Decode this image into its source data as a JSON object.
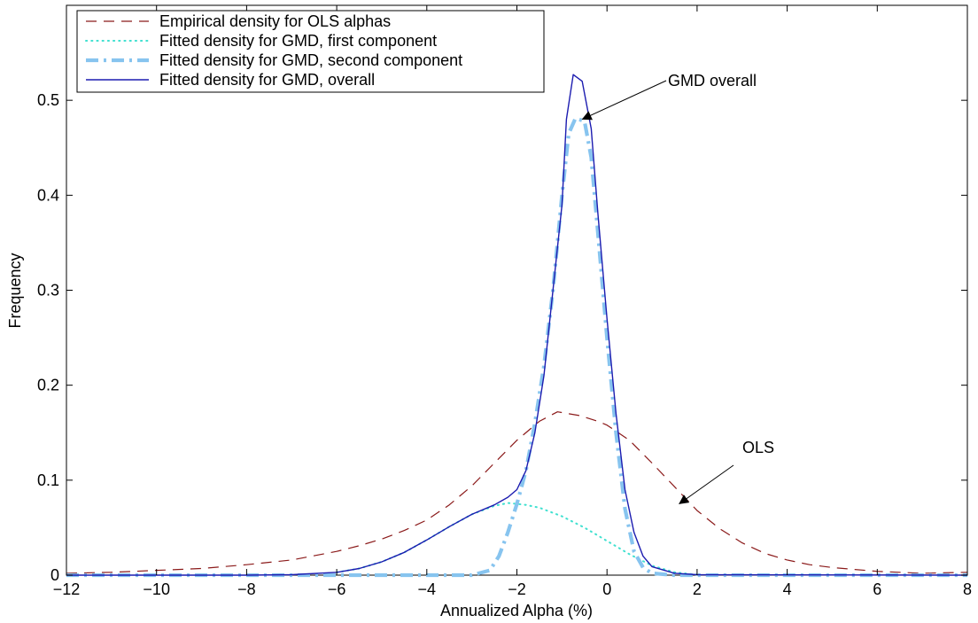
{
  "chart_data": {
    "type": "line",
    "title": "",
    "xlabel": "Annualized Alpha (%)",
    "ylabel": "Frequency",
    "xlim": [
      -12,
      8
    ],
    "ylim": [
      0,
      0.6
    ],
    "xticks": [
      -12,
      -10,
      -8,
      -6,
      -4,
      -2,
      0,
      2,
      4,
      6,
      8
    ],
    "xtick_labels": [
      "−12",
      "−10",
      "−8",
      "−6",
      "−4",
      "−2",
      "0",
      "2",
      "4",
      "6",
      "8"
    ],
    "yticks": [
      0,
      0.1,
      0.2,
      0.3,
      0.4,
      0.5
    ],
    "ytick_labels": [
      "0",
      "0.1",
      "0.2",
      "0.3",
      "0.4",
      "0.5"
    ],
    "grid": false,
    "legend_position": "top-left",
    "series": [
      {
        "name": "Empirical density for OLS alphas",
        "color": "#8b1a1a",
        "style": "dashed",
        "points": [
          [
            -12,
            0.002
          ],
          [
            -11,
            0.003
          ],
          [
            -10,
            0.005
          ],
          [
            -9,
            0.007
          ],
          [
            -8,
            0.011
          ],
          [
            -7,
            0.016
          ],
          [
            -6,
            0.025
          ],
          [
            -5.5,
            0.031
          ],
          [
            -5,
            0.038
          ],
          [
            -4.5,
            0.047
          ],
          [
            -4,
            0.058
          ],
          [
            -3.5,
            0.074
          ],
          [
            -3,
            0.094
          ],
          [
            -2.5,
            0.118
          ],
          [
            -2,
            0.142
          ],
          [
            -1.5,
            0.162
          ],
          [
            -1.1,
            0.172
          ],
          [
            -0.6,
            0.168
          ],
          [
            -0.2,
            0.162
          ],
          [
            0,
            0.158
          ],
          [
            0.5,
            0.142
          ],
          [
            1,
            0.118
          ],
          [
            1.5,
            0.093
          ],
          [
            2,
            0.068
          ],
          [
            2.5,
            0.049
          ],
          [
            3,
            0.034
          ],
          [
            3.5,
            0.023
          ],
          [
            4,
            0.016
          ],
          [
            4.5,
            0.011
          ],
          [
            5,
            0.008
          ],
          [
            5.5,
            0.006
          ],
          [
            6,
            0.004
          ],
          [
            6.5,
            0.003
          ],
          [
            7,
            0.002
          ],
          [
            8,
            0.003
          ]
        ]
      },
      {
        "name": "Fitted density for GMD, first component",
        "color": "#40e0d0",
        "style": "dotted",
        "points": [
          [
            -6,
            0.003
          ],
          [
            -5.5,
            0.007
          ],
          [
            -5,
            0.014
          ],
          [
            -4.5,
            0.024
          ],
          [
            -4,
            0.037
          ],
          [
            -3.5,
            0.051
          ],
          [
            -3,
            0.064
          ],
          [
            -2.5,
            0.073
          ],
          [
            -2.2,
            0.076
          ],
          [
            -1.8,
            0.074
          ],
          [
            -1.5,
            0.071
          ],
          [
            -1,
            0.062
          ],
          [
            -0.5,
            0.05
          ],
          [
            0,
            0.036
          ],
          [
            0.5,
            0.022
          ],
          [
            1,
            0.01
          ],
          [
            1.5,
            0.003
          ],
          [
            2,
            0.0005
          ]
        ]
      },
      {
        "name": "Fitted density for GMD, second component",
        "color": "#87c4ef",
        "style": "dashdot",
        "points": [
          [
            -12,
            0
          ],
          [
            -6,
            0
          ],
          [
            -3,
            0
          ],
          [
            -2.6,
            0.005
          ],
          [
            -2.4,
            0.02
          ],
          [
            -2.2,
            0.045
          ],
          [
            -2.0,
            0.075
          ],
          [
            -1.8,
            0.11
          ],
          [
            -1.6,
            0.16
          ],
          [
            -1.4,
            0.22
          ],
          [
            -1.2,
            0.3
          ],
          [
            -1.0,
            0.4
          ],
          [
            -0.85,
            0.465
          ],
          [
            -0.7,
            0.481
          ],
          [
            -0.5,
            0.478
          ],
          [
            -0.35,
            0.44
          ],
          [
            -0.2,
            0.36
          ],
          [
            0,
            0.25
          ],
          [
            0.2,
            0.15
          ],
          [
            0.4,
            0.07
          ],
          [
            0.6,
            0.025
          ],
          [
            0.8,
            0.008
          ],
          [
            1.0,
            0.002
          ],
          [
            1.5,
            0
          ],
          [
            8,
            0
          ]
        ]
      },
      {
        "name": "Fitted density for GMD, overall",
        "color": "#1c1cb0",
        "style": "solid",
        "points": [
          [
            -12,
            0
          ],
          [
            -8,
            0
          ],
          [
            -7,
            0.0005
          ],
          [
            -6,
            0.003
          ],
          [
            -5.5,
            0.007
          ],
          [
            -5,
            0.014
          ],
          [
            -4.5,
            0.024
          ],
          [
            -4,
            0.037
          ],
          [
            -3.5,
            0.051
          ],
          [
            -3,
            0.064
          ],
          [
            -2.5,
            0.074
          ],
          [
            -2.2,
            0.082
          ],
          [
            -2,
            0.09
          ],
          [
            -1.8,
            0.11
          ],
          [
            -1.6,
            0.15
          ],
          [
            -1.4,
            0.21
          ],
          [
            -1.2,
            0.3
          ],
          [
            -1.0,
            0.39
          ],
          [
            -0.9,
            0.48
          ],
          [
            -0.75,
            0.527
          ],
          [
            -0.55,
            0.52
          ],
          [
            -0.35,
            0.47
          ],
          [
            -0.2,
            0.38
          ],
          [
            0,
            0.27
          ],
          [
            0.2,
            0.17
          ],
          [
            0.4,
            0.09
          ],
          [
            0.6,
            0.045
          ],
          [
            0.8,
            0.02
          ],
          [
            1.0,
            0.009
          ],
          [
            1.5,
            0.002
          ],
          [
            2,
            0.0005
          ],
          [
            8,
            0
          ]
        ]
      }
    ],
    "annotations": [
      {
        "text": "GMD overall",
        "arrow_to": [
          -0.55,
          0.48
        ]
      },
      {
        "text": "OLS",
        "arrow_to": [
          1.6,
          0.075
        ]
      }
    ]
  }
}
